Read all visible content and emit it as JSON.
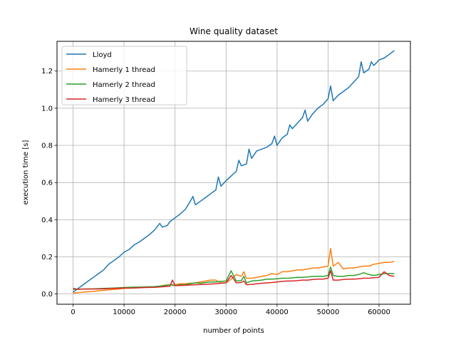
{
  "chart_data": {
    "type": "line",
    "title": "Wine quality dataset",
    "xlabel": "number of points",
    "ylabel": "execution time [s]",
    "xlim": [
      -3150,
      66150
    ],
    "ylim": [
      -0.055,
      1.36
    ],
    "xticks": [
      0,
      10000,
      20000,
      30000,
      40000,
      50000,
      60000
    ],
    "xtick_labels": [
      "0",
      "10000",
      "20000",
      "30000",
      "40000",
      "50000",
      "60000"
    ],
    "yticks": [
      0.0,
      0.2,
      0.4,
      0.6,
      0.8,
      1.0,
      1.2
    ],
    "ytick_labels": [
      "0.0",
      "0.2",
      "0.4",
      "0.6",
      "0.8",
      "1.0",
      "1.2"
    ],
    "grid": true,
    "legend_position": "top-left",
    "series": [
      {
        "name": "Lloyd",
        "color": "#1f77b4",
        "points": [
          [
            0,
            0.01
          ],
          [
            1000,
            0.03
          ],
          [
            2000,
            0.05
          ],
          [
            3000,
            0.07
          ],
          [
            4000,
            0.09
          ],
          [
            5000,
            0.11
          ],
          [
            6000,
            0.13
          ],
          [
            7000,
            0.16
          ],
          [
            8000,
            0.18
          ],
          [
            9000,
            0.2
          ],
          [
            10000,
            0.225
          ],
          [
            11000,
            0.24
          ],
          [
            12000,
            0.265
          ],
          [
            13000,
            0.28
          ],
          [
            14000,
            0.3
          ],
          [
            15000,
            0.32
          ],
          [
            16000,
            0.345
          ],
          [
            17000,
            0.38
          ],
          [
            17500,
            0.36
          ],
          [
            18500,
            0.37
          ],
          [
            19000,
            0.39
          ],
          [
            20000,
            0.41
          ],
          [
            21000,
            0.43
          ],
          [
            22000,
            0.455
          ],
          [
            23000,
            0.5
          ],
          [
            23500,
            0.525
          ],
          [
            24000,
            0.48
          ],
          [
            25000,
            0.5
          ],
          [
            26000,
            0.52
          ],
          [
            27000,
            0.54
          ],
          [
            28000,
            0.56
          ],
          [
            28500,
            0.63
          ],
          [
            29000,
            0.58
          ],
          [
            30000,
            0.61
          ],
          [
            31000,
            0.635
          ],
          [
            32000,
            0.66
          ],
          [
            32500,
            0.72
          ],
          [
            33000,
            0.69
          ],
          [
            34000,
            0.7
          ],
          [
            34500,
            0.78
          ],
          [
            35000,
            0.73
          ],
          [
            36000,
            0.77
          ],
          [
            37000,
            0.78
          ],
          [
            38000,
            0.79
          ],
          [
            39000,
            0.81
          ],
          [
            39500,
            0.85
          ],
          [
            40000,
            0.8
          ],
          [
            41000,
            0.84
          ],
          [
            42000,
            0.86
          ],
          [
            42500,
            0.91
          ],
          [
            43000,
            0.89
          ],
          [
            44000,
            0.92
          ],
          [
            45000,
            0.95
          ],
          [
            45500,
            0.99
          ],
          [
            46000,
            0.93
          ],
          [
            47000,
            0.97
          ],
          [
            48000,
            1.0
          ],
          [
            49000,
            1.02
          ],
          [
            50000,
            1.05
          ],
          [
            50500,
            1.12
          ],
          [
            51000,
            1.04
          ],
          [
            52000,
            1.07
          ],
          [
            53000,
            1.09
          ],
          [
            54000,
            1.11
          ],
          [
            55000,
            1.14
          ],
          [
            56000,
            1.17
          ],
          [
            56500,
            1.25
          ],
          [
            57000,
            1.19
          ],
          [
            58000,
            1.21
          ],
          [
            58500,
            1.25
          ],
          [
            59000,
            1.23
          ],
          [
            60000,
            1.26
          ],
          [
            61000,
            1.27
          ],
          [
            62000,
            1.29
          ],
          [
            63000,
            1.31
          ]
        ]
      },
      {
        "name": "Hamerly 1 thread",
        "color": "#ff7f0e",
        "points": [
          [
            0,
            0.005
          ],
          [
            1000,
            0.008
          ],
          [
            2000,
            0.01
          ],
          [
            3000,
            0.012
          ],
          [
            4000,
            0.014
          ],
          [
            5000,
            0.018
          ],
          [
            6000,
            0.02
          ],
          [
            7000,
            0.022
          ],
          [
            8000,
            0.025
          ],
          [
            9000,
            0.027
          ],
          [
            10000,
            0.03
          ],
          [
            12000,
            0.032
          ],
          [
            14000,
            0.035
          ],
          [
            16000,
            0.038
          ],
          [
            17000,
            0.042
          ],
          [
            18000,
            0.048
          ],
          [
            19000,
            0.05
          ],
          [
            20000,
            0.05
          ],
          [
            21000,
            0.055
          ],
          [
            22000,
            0.055
          ],
          [
            23000,
            0.058
          ],
          [
            24000,
            0.06
          ],
          [
            25000,
            0.065
          ],
          [
            26000,
            0.07
          ],
          [
            27000,
            0.075
          ],
          [
            28000,
            0.075
          ],
          [
            29000,
            0.06
          ],
          [
            30000,
            0.06
          ],
          [
            31000,
            0.08
          ],
          [
            32000,
            0.105
          ],
          [
            33000,
            0.095
          ],
          [
            33500,
            0.12
          ],
          [
            34000,
            0.085
          ],
          [
            35000,
            0.085
          ],
          [
            36000,
            0.09
          ],
          [
            37000,
            0.095
          ],
          [
            38000,
            0.1
          ],
          [
            39000,
            0.11
          ],
          [
            40000,
            0.105
          ],
          [
            41000,
            0.12
          ],
          [
            42000,
            0.12
          ],
          [
            43000,
            0.125
          ],
          [
            44000,
            0.13
          ],
          [
            45000,
            0.13
          ],
          [
            46000,
            0.135
          ],
          [
            47000,
            0.14
          ],
          [
            48000,
            0.14
          ],
          [
            49000,
            0.145
          ],
          [
            50000,
            0.15
          ],
          [
            50500,
            0.245
          ],
          [
            51000,
            0.15
          ],
          [
            52000,
            0.17
          ],
          [
            53000,
            0.135
          ],
          [
            54000,
            0.14
          ],
          [
            55000,
            0.14
          ],
          [
            56000,
            0.145
          ],
          [
            57000,
            0.15
          ],
          [
            58000,
            0.15
          ],
          [
            59000,
            0.16
          ],
          [
            60000,
            0.165
          ],
          [
            61000,
            0.17
          ],
          [
            62000,
            0.17
          ],
          [
            63000,
            0.175
          ]
        ]
      },
      {
        "name": "Hamerly 2 thread",
        "color": "#2ca02c",
        "points": [
          [
            0,
            0.025
          ],
          [
            2000,
            0.027
          ],
          [
            4000,
            0.028
          ],
          [
            6000,
            0.03
          ],
          [
            8000,
            0.032
          ],
          [
            10000,
            0.035
          ],
          [
            12000,
            0.037
          ],
          [
            14000,
            0.038
          ],
          [
            16000,
            0.04
          ],
          [
            18000,
            0.045
          ],
          [
            19000,
            0.05
          ],
          [
            20000,
            0.045
          ],
          [
            21000,
            0.05
          ],
          [
            22000,
            0.05
          ],
          [
            23000,
            0.055
          ],
          [
            24000,
            0.06
          ],
          [
            25000,
            0.058
          ],
          [
            26000,
            0.062
          ],
          [
            27000,
            0.065
          ],
          [
            28000,
            0.065
          ],
          [
            29000,
            0.068
          ],
          [
            30000,
            0.07
          ],
          [
            31000,
            0.125
          ],
          [
            32000,
            0.07
          ],
          [
            33000,
            0.072
          ],
          [
            33500,
            0.095
          ],
          [
            34000,
            0.06
          ],
          [
            35000,
            0.07
          ],
          [
            36000,
            0.072
          ],
          [
            37000,
            0.075
          ],
          [
            38000,
            0.08
          ],
          [
            39000,
            0.08
          ],
          [
            40000,
            0.082
          ],
          [
            41000,
            0.085
          ],
          [
            42000,
            0.085
          ],
          [
            43000,
            0.087
          ],
          [
            44000,
            0.09
          ],
          [
            45000,
            0.09
          ],
          [
            46000,
            0.092
          ],
          [
            47000,
            0.095
          ],
          [
            48000,
            0.095
          ],
          [
            49000,
            0.095
          ],
          [
            50000,
            0.1
          ],
          [
            50500,
            0.145
          ],
          [
            51000,
            0.1
          ],
          [
            52000,
            0.095
          ],
          [
            53000,
            0.095
          ],
          [
            54000,
            0.1
          ],
          [
            55000,
            0.1
          ],
          [
            56000,
            0.105
          ],
          [
            57000,
            0.115
          ],
          [
            58000,
            0.105
          ],
          [
            59000,
            0.1
          ],
          [
            60000,
            0.105
          ],
          [
            61000,
            0.11
          ],
          [
            62000,
            0.11
          ],
          [
            63000,
            0.11
          ]
        ]
      },
      {
        "name": "Hamerly 3 thread",
        "color": "#d62728",
        "points": [
          [
            0,
            0.03
          ],
          [
            1000,
            0.025
          ],
          [
            2000,
            0.027
          ],
          [
            4000,
            0.027
          ],
          [
            6000,
            0.028
          ],
          [
            8000,
            0.03
          ],
          [
            10000,
            0.032
          ],
          [
            12000,
            0.033
          ],
          [
            14000,
            0.035
          ],
          [
            16000,
            0.036
          ],
          [
            18000,
            0.04
          ],
          [
            19000,
            0.042
          ],
          [
            19500,
            0.075
          ],
          [
            20000,
            0.045
          ],
          [
            22000,
            0.047
          ],
          [
            24000,
            0.05
          ],
          [
            26000,
            0.052
          ],
          [
            28000,
            0.055
          ],
          [
            29000,
            0.058
          ],
          [
            30000,
            0.06
          ],
          [
            31000,
            0.1
          ],
          [
            32000,
            0.06
          ],
          [
            33000,
            0.062
          ],
          [
            33500,
            0.07
          ],
          [
            34000,
            0.05
          ],
          [
            35000,
            0.052
          ],
          [
            36000,
            0.055
          ],
          [
            37000,
            0.058
          ],
          [
            38000,
            0.06
          ],
          [
            39000,
            0.062
          ],
          [
            40000,
            0.065
          ],
          [
            41000,
            0.068
          ],
          [
            42000,
            0.07
          ],
          [
            43000,
            0.07
          ],
          [
            44000,
            0.072
          ],
          [
            45000,
            0.075
          ],
          [
            46000,
            0.075
          ],
          [
            47000,
            0.078
          ],
          [
            48000,
            0.08
          ],
          [
            49000,
            0.08
          ],
          [
            50000,
            0.085
          ],
          [
            50500,
            0.125
          ],
          [
            51000,
            0.075
          ],
          [
            52000,
            0.075
          ],
          [
            53000,
            0.078
          ],
          [
            54000,
            0.08
          ],
          [
            55000,
            0.08
          ],
          [
            56000,
            0.082
          ],
          [
            57000,
            0.085
          ],
          [
            58000,
            0.085
          ],
          [
            59000,
            0.088
          ],
          [
            60000,
            0.09
          ],
          [
            61000,
            0.12
          ],
          [
            62000,
            0.1
          ],
          [
            63000,
            0.095
          ]
        ]
      }
    ]
  }
}
